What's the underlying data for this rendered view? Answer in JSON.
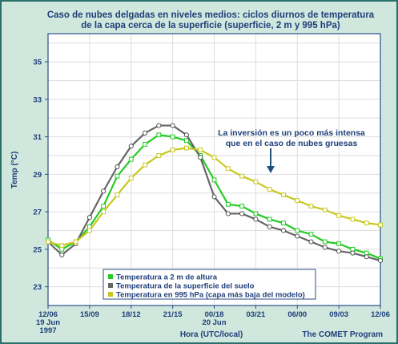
{
  "chart_data": {
    "type": "line",
    "title_line1": "Caso de nubes delgadas en niveles medios: ciclos diurnos de temperatura",
    "title_line2": "de la capa cerca de la superficie (superficie, 2 m y 995 hPa)",
    "ylabel": "Temp (°C)",
    "xlabel": "Hora (UTC/local)",
    "credit": "The COMET Program",
    "annotation_line1": "La inversión es un poco más intensa",
    "annotation_line2": "que en el caso de nubes gruesas",
    "ylim": [
      22,
      36.5
    ],
    "xlim": [
      0,
      24
    ],
    "y_ticks": [
      "35",
      "33",
      "31",
      "29",
      "27",
      "25",
      "23"
    ],
    "x_ticks": [
      {
        "x": 0,
        "label": "12/06",
        "sub1": "19 Jun",
        "sub2": "1997"
      },
      {
        "x": 3,
        "label": "15/09",
        "sub1": "",
        "sub2": ""
      },
      {
        "x": 6,
        "label": "18/12",
        "sub1": "",
        "sub2": ""
      },
      {
        "x": 9,
        "label": "21/15",
        "sub1": "",
        "sub2": ""
      },
      {
        "x": 12,
        "label": "00/18",
        "sub1": "20 Jun",
        "sub2": ""
      },
      {
        "x": 15,
        "label": "03/21",
        "sub1": "",
        "sub2": ""
      },
      {
        "x": 18,
        "label": "06/00",
        "sub1": "",
        "sub2": ""
      },
      {
        "x": 21,
        "label": "09/03",
        "sub1": "",
        "sub2": ""
      },
      {
        "x": 24,
        "label": "12/06",
        "sub1": "",
        "sub2": ""
      }
    ],
    "grid": true,
    "legend_position": "bottom-center",
    "series": [
      {
        "name": "Temperatura a 2 m de altura",
        "color": "#22cc22",
        "marker": "square",
        "x": [
          0,
          1,
          2,
          3,
          4,
          5,
          6,
          7,
          8,
          9,
          10,
          11,
          12,
          13,
          14,
          15,
          16,
          17,
          18,
          19,
          20,
          21,
          22,
          23,
          24
        ],
        "values": [
          25.5,
          25.0,
          25.4,
          26.2,
          27.3,
          28.9,
          29.8,
          30.6,
          31.1,
          31.0,
          30.8,
          30.0,
          28.7,
          27.4,
          27.3,
          26.9,
          26.6,
          26.4,
          26.0,
          25.8,
          25.4,
          25.3,
          25.0,
          24.8,
          24.5
        ]
      },
      {
        "name": "Temperatura de la superficie del suelo",
        "color": "#666666",
        "marker": "circle",
        "x": [
          0,
          1,
          2,
          3,
          4,
          5,
          6,
          7,
          8,
          9,
          10,
          11,
          12,
          13,
          14,
          15,
          16,
          17,
          18,
          19,
          20,
          21,
          22,
          23,
          24
        ],
        "values": [
          25.4,
          24.7,
          25.3,
          26.7,
          28.1,
          29.4,
          30.5,
          31.2,
          31.6,
          31.6,
          31.1,
          29.9,
          27.8,
          26.9,
          26.9,
          26.6,
          26.2,
          26.0,
          25.7,
          25.4,
          25.1,
          24.9,
          24.8,
          24.6,
          24.4
        ]
      },
      {
        "name": "Temperatura en 995 hPa (capa más baja del modelo)",
        "color": "#c8c820",
        "marker": "square",
        "x": [
          0,
          1,
          2,
          3,
          4,
          5,
          6,
          7,
          8,
          9,
          10,
          11,
          12,
          13,
          14,
          15,
          16,
          17,
          18,
          19,
          20,
          21,
          22,
          23,
          24
        ],
        "values": [
          25.4,
          25.2,
          25.4,
          26.0,
          27.0,
          27.9,
          28.8,
          29.5,
          30.0,
          30.3,
          30.4,
          30.3,
          29.9,
          29.3,
          28.9,
          28.6,
          28.2,
          27.9,
          27.6,
          27.3,
          27.1,
          26.8,
          26.6,
          26.4,
          26.3
        ]
      }
    ]
  }
}
